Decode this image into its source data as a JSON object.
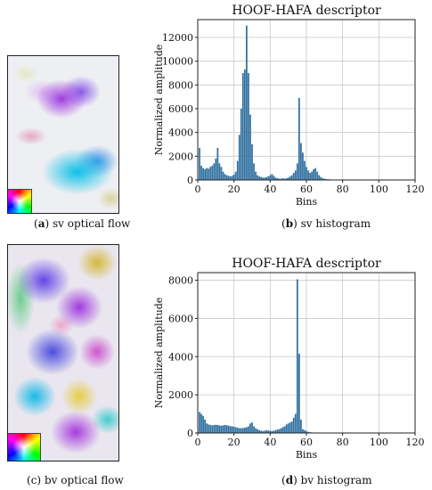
{
  "captions": {
    "a": {
      "tag": "a",
      "text": "sv optical flow"
    },
    "b": {
      "tag": "b",
      "text": "sv histogram"
    },
    "c": {
      "tag": "c",
      "text": "bv optical flow"
    },
    "d": {
      "tag": "d",
      "text": "bv histogram"
    }
  },
  "paren_open": "(",
  "paren_close": ")",
  "chart_data": [
    {
      "type": "bar",
      "title": "HOOF-HAFA descriptor",
      "xlabel": "Bins",
      "ylabel": "Normalized amplitude",
      "xlim": [
        0,
        120
      ],
      "ylim": [
        0,
        13500
      ],
      "xticks": [
        0,
        20,
        40,
        60,
        80,
        100,
        120
      ],
      "yticks": [
        0,
        2000,
        4000,
        6000,
        8000,
        10000,
        12000
      ],
      "grid": true,
      "color": "#2f6f9f",
      "x": [
        1,
        2,
        3,
        4,
        5,
        6,
        7,
        8,
        9,
        10,
        11,
        12,
        13,
        14,
        15,
        16,
        17,
        18,
        19,
        20,
        21,
        22,
        23,
        24,
        25,
        26,
        27,
        28,
        29,
        30,
        31,
        32,
        33,
        34,
        35,
        36,
        37,
        38,
        39,
        40,
        41,
        42,
        43,
        44,
        45,
        46,
        47,
        48,
        49,
        50,
        51,
        52,
        53,
        54,
        55,
        56,
        57,
        58,
        59,
        60,
        61,
        62,
        63,
        64,
        65,
        66,
        67,
        68,
        69,
        70,
        71,
        72,
        73,
        74,
        75,
        76,
        77,
        78,
        79,
        80,
        81,
        82,
        83,
        84,
        85,
        86,
        87,
        88,
        89,
        90
      ],
      "values": [
        2700,
        1200,
        1000,
        900,
        1000,
        950,
        1100,
        1200,
        1400,
        1800,
        2700,
        1400,
        1100,
        700,
        500,
        400,
        350,
        300,
        350,
        450,
        700,
        1600,
        3800,
        6000,
        9000,
        9300,
        13000,
        9000,
        5500,
        3000,
        1400,
        700,
        400,
        300,
        250,
        200,
        200,
        250,
        300,
        400,
        500,
        350,
        200,
        150,
        100,
        100,
        150,
        100,
        150,
        200,
        300,
        400,
        600,
        800,
        1400,
        6900,
        3100,
        2300,
        1600,
        1100,
        800,
        600,
        700,
        900,
        1000,
        700,
        400,
        250,
        150,
        100,
        80,
        60,
        50,
        40,
        30,
        30,
        20,
        20,
        10,
        10,
        10,
        5,
        5,
        5,
        5,
        5,
        5,
        5,
        5,
        5
      ]
    },
    {
      "type": "bar",
      "title": "HOOF-HAFA descriptor",
      "xlabel": "Bins",
      "ylabel": "Normalized amplitude",
      "xlim": [
        0,
        120
      ],
      "ylim": [
        0,
        8400
      ],
      "xticks": [
        0,
        20,
        40,
        60,
        80,
        100,
        120
      ],
      "yticks": [
        0,
        2000,
        4000,
        6000,
        8000
      ],
      "grid": true,
      "color": "#2f6f9f",
      "x": [
        1,
        2,
        3,
        4,
        5,
        6,
        7,
        8,
        9,
        10,
        11,
        12,
        13,
        14,
        15,
        16,
        17,
        18,
        19,
        20,
        21,
        22,
        23,
        24,
        25,
        26,
        27,
        28,
        29,
        30,
        31,
        32,
        33,
        34,
        35,
        36,
        37,
        38,
        39,
        40,
        41,
        42,
        43,
        44,
        45,
        46,
        47,
        48,
        49,
        50,
        51,
        52,
        53,
        54,
        55,
        56,
        57,
        58,
        59,
        60,
        61,
        62,
        63,
        64,
        65,
        66,
        67,
        68,
        69,
        70,
        71,
        72,
        73,
        74,
        75,
        76,
        77,
        78,
        79,
        80,
        81,
        82,
        83,
        84,
        85,
        86,
        87,
        88,
        89,
        90
      ],
      "values": [
        1100,
        1000,
        900,
        700,
        500,
        450,
        420,
        400,
        420,
        430,
        420,
        400,
        380,
        400,
        420,
        410,
        380,
        360,
        350,
        330,
        300,
        280,
        250,
        250,
        260,
        280,
        300,
        350,
        500,
        550,
        350,
        250,
        200,
        150,
        120,
        100,
        120,
        150,
        130,
        120,
        100,
        120,
        150,
        180,
        200,
        250,
        300,
        350,
        450,
        500,
        550,
        600,
        800,
        1000,
        8050,
        4150,
        700,
        200,
        150,
        100,
        60,
        40,
        30,
        20,
        20,
        10,
        10,
        10,
        5,
        5,
        5,
        5,
        5,
        5,
        5,
        5,
        5,
        5,
        5,
        5,
        5,
        5,
        5,
        5,
        5,
        5,
        5,
        5,
        5,
        5
      ]
    }
  ]
}
